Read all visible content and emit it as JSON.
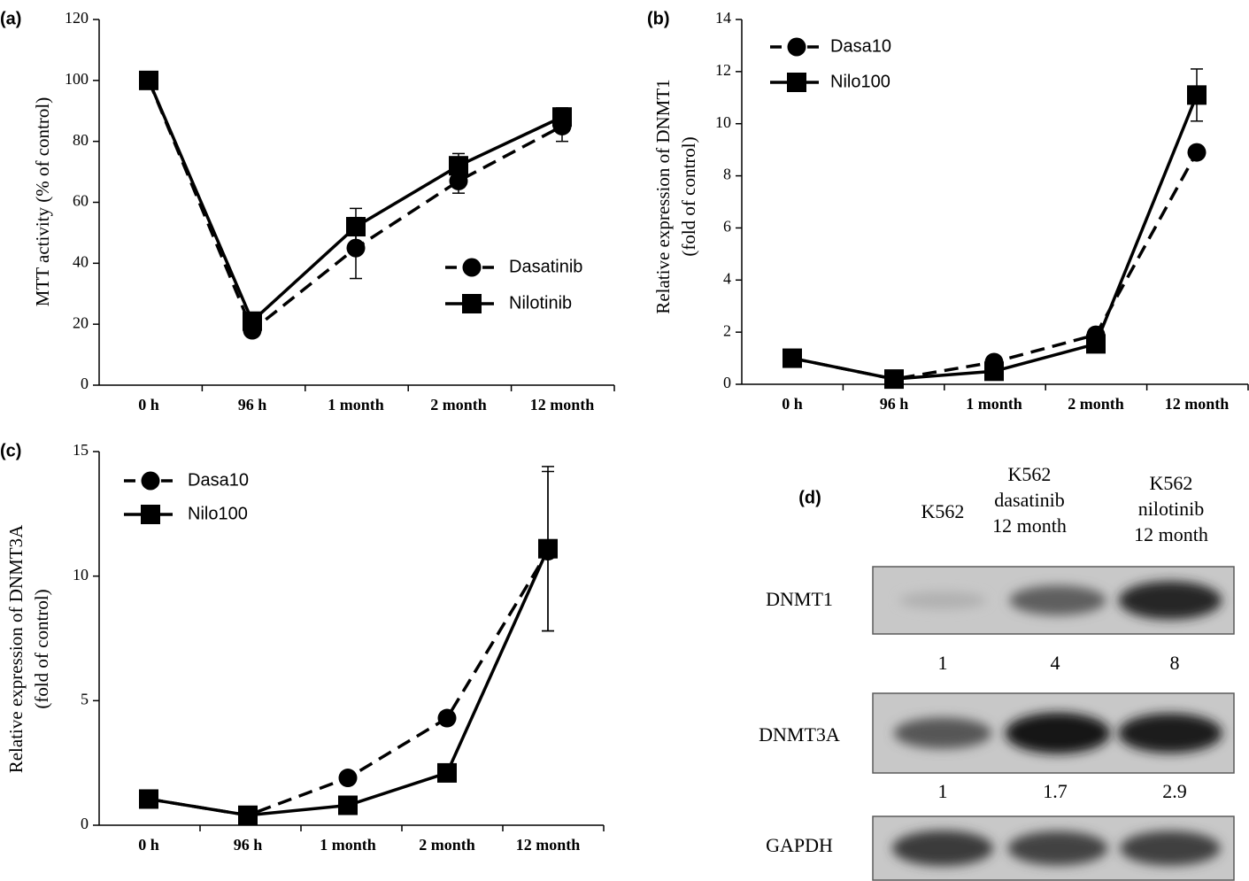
{
  "chart_data": [
    {
      "panel": "(a)",
      "type": "line",
      "ylabel": "MTT activity  (% of control)",
      "xlabel": "",
      "categories": [
        "0 h",
        "96 h",
        "1 month",
        "2 month",
        "12 month"
      ],
      "ylim": [
        0,
        120
      ],
      "yticks": [
        0,
        20,
        40,
        60,
        80,
        100,
        120
      ],
      "legend": "center-right",
      "series": [
        {
          "name": "Dasatinib",
          "style": "dashed",
          "marker": "circle",
          "values": [
            100,
            18,
            45,
            67,
            85
          ],
          "errors": [
            0,
            0,
            10,
            4,
            5
          ]
        },
        {
          "name": "Nilotinib",
          "style": "solid",
          "marker": "square",
          "values": [
            100,
            21,
            52,
            72,
            88
          ],
          "errors": [
            0,
            0,
            6,
            4,
            3
          ]
        }
      ]
    },
    {
      "panel": "(b)",
      "type": "line",
      "ylabel": "Relative expression of DNMT1",
      "ylabel2": "(fold of control)",
      "xlabel": "",
      "categories": [
        "0 h",
        "96 h",
        "1 month",
        "2 month",
        "12 month"
      ],
      "ylim": [
        0,
        14
      ],
      "yticks": [
        0,
        2,
        4,
        6,
        8,
        10,
        12,
        14
      ],
      "legend": "top-left",
      "series": [
        {
          "name": "Dasa10",
          "style": "dashed",
          "marker": "circle",
          "values": [
            1,
            0.2,
            0.85,
            1.9,
            8.9
          ],
          "errors": [
            0,
            0,
            0,
            0,
            0
          ]
        },
        {
          "name": "Nilo100",
          "style": "solid",
          "marker": "square",
          "values": [
            1,
            0.2,
            0.5,
            1.55,
            11.1
          ],
          "errors": [
            0,
            0,
            0,
            0,
            1
          ]
        }
      ]
    },
    {
      "panel": "(c)",
      "type": "line",
      "ylabel": "Relative expression of DNMT3A",
      "ylabel2": "(fold of control)",
      "xlabel": "",
      "categories": [
        "0 h",
        "96 h",
        "1 month",
        "2 month",
        "12 month"
      ],
      "ylim": [
        0,
        15
      ],
      "yticks": [
        0,
        5,
        10,
        15
      ],
      "legend": "top-left",
      "series": [
        {
          "name": "Dasa10",
          "style": "dashed",
          "marker": "circle",
          "values": [
            1.05,
            0.4,
            1.9,
            4.3,
            11.0
          ],
          "errors": [
            0,
            0,
            0,
            0,
            3.2
          ]
        },
        {
          "name": "Nilo100",
          "style": "solid",
          "marker": "square",
          "values": [
            1.05,
            0.4,
            0.8,
            2.1,
            11.1
          ],
          "errors": [
            0,
            0,
            0,
            0,
            3.3
          ]
        }
      ]
    }
  ],
  "western_blot": {
    "panel": "(d)",
    "lanes": [
      {
        "lines": [
          "K562"
        ]
      },
      {
        "lines": [
          "K562",
          "dasatinib",
          "12 month"
        ]
      },
      {
        "lines": [
          "K562",
          "nilotinib",
          "12 month"
        ]
      }
    ],
    "rows": [
      {
        "label": "DNMT1",
        "quant": [
          "1",
          "4",
          "8"
        ],
        "intensity": [
          0.12,
          0.55,
          0.85
        ]
      },
      {
        "label": "DNMT3A",
        "quant": [
          "1",
          "1.7",
          "2.9"
        ],
        "intensity": [
          0.6,
          0.95,
          0.9
        ]
      },
      {
        "label": "GAPDH",
        "quant": [],
        "intensity": [
          0.75,
          0.7,
          0.72
        ]
      }
    ]
  },
  "colors": {
    "ink": "#000000",
    "paper": "#ffffff",
    "blot_bg": "#c8c8c8",
    "blot_border": "#5a5a5a"
  }
}
